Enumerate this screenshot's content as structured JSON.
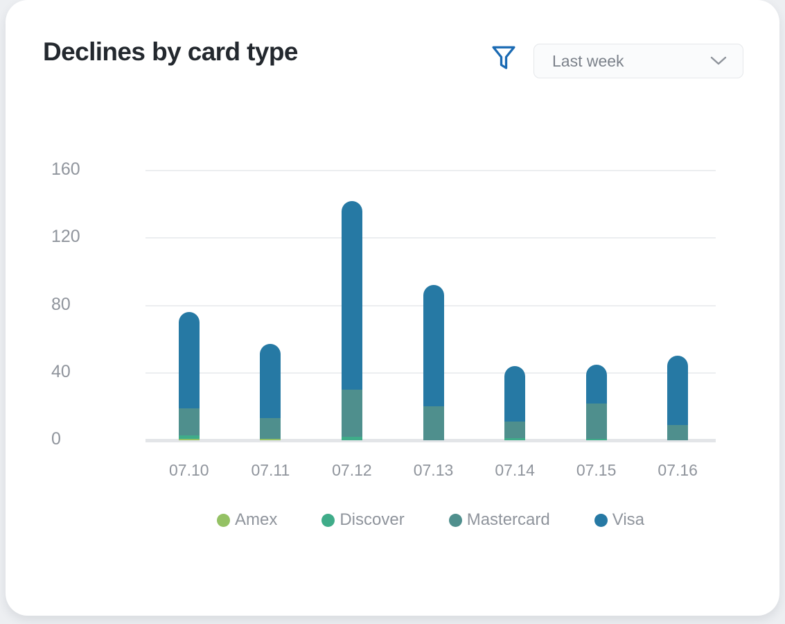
{
  "header": {
    "title": "Declines by card type",
    "dropdown": {
      "value": "Last week"
    }
  },
  "icons": {
    "filter": "funnel-icon",
    "dropdown_chevron": "chevron-down-icon"
  },
  "colors": {
    "filter_icon": "#1a6ab3",
    "chevron": "#8d929a",
    "title_text": "#23282e",
    "axis_text": "#8f949c",
    "gridline": "#eceef0",
    "zero_line": "#e3e5e8",
    "card_bg": "#ffffff",
    "page_bg": "#edeff2"
  },
  "chart_data": {
    "type": "bar",
    "stacked": true,
    "title": "Declines by card type",
    "xlabel": "",
    "ylabel": "",
    "categories": [
      "07.10",
      "07.11",
      "07.12",
      "07.13",
      "07.14",
      "07.15",
      "07.16"
    ],
    "series": [
      {
        "name": "Amex",
        "color": "#94c164",
        "values": [
          1,
          1,
          0,
          0,
          0,
          0,
          0
        ]
      },
      {
        "name": "Discover",
        "color": "#3fac89",
        "values": [
          2,
          0,
          2,
          0,
          1,
          1,
          0
        ]
      },
      {
        "name": "Mastercard",
        "color": "#4f8f8d",
        "values": [
          16,
          12,
          28,
          20,
          10,
          21,
          9
        ]
      },
      {
        "name": "Visa",
        "color": "#2679a4",
        "values": [
          57,
          44,
          112,
          72,
          33,
          23,
          41
        ]
      }
    ],
    "totals": [
      76,
      57,
      142,
      92,
      44,
      45,
      50
    ],
    "ylim": [
      0,
      160
    ],
    "yticks": [
      0,
      40,
      80,
      120,
      160
    ],
    "grid": true,
    "legend_position": "bottom"
  }
}
